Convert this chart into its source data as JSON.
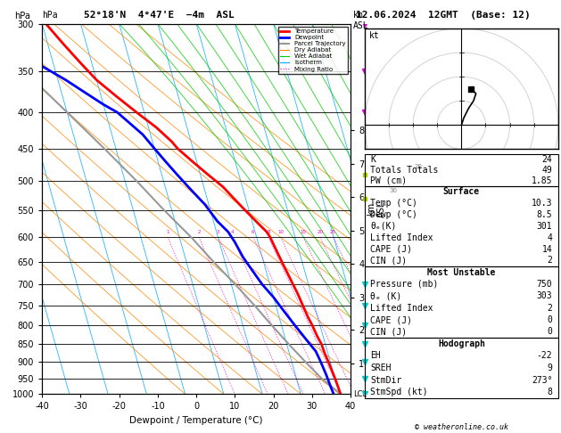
{
  "title_left": "52°18'N  4°47'E  −4m  ASL",
  "title_right": "12.06.2024  12GMT  (Base: 12)",
  "xlabel": "Dewpoint / Temperature (°C)",
  "ylabel_left": "hPa",
  "pressure_ticks": [
    300,
    350,
    400,
    450,
    500,
    550,
    600,
    650,
    700,
    750,
    800,
    850,
    900,
    950,
    1000
  ],
  "temp_range": [
    -40,
    40
  ],
  "isotherm_color": "#00aaff",
  "dry_adiabat_color": "#ff8800",
  "wet_adiabat_color": "#00cc00",
  "mixing_ratio_color": "#ff00bb",
  "temp_color": "#ff0000",
  "dewpoint_color": "#0000ff",
  "parcel_color": "#999999",
  "km_ticks": [
    1,
    2,
    3,
    4,
    5,
    6,
    7,
    8
  ],
  "km_pressures": [
    905,
    812,
    730,
    655,
    588,
    527,
    473,
    424
  ],
  "mixing_ratio_values": [
    1,
    2,
    3,
    4,
    6,
    8,
    10,
    15,
    20,
    25
  ],
  "temperature_profile": {
    "pressure": [
      300,
      320,
      340,
      360,
      380,
      400,
      420,
      440,
      450,
      470,
      490,
      510,
      530,
      550,
      570,
      590,
      600,
      620,
      640,
      660,
      680,
      700,
      720,
      750,
      780,
      800,
      830,
      850,
      880,
      900,
      930,
      950,
      980,
      1000
    ],
    "temp": [
      -39,
      -36,
      -33,
      -30,
      -26,
      -22,
      -18,
      -15,
      -14,
      -11,
      -8,
      -5,
      -3,
      -1,
      1,
      3,
      3.5,
      4,
      4.5,
      5,
      5.5,
      6,
      6.5,
      7,
      7.5,
      8,
      8.5,
      9,
      9.2,
      9.5,
      9.8,
      10,
      10.2,
      10.3
    ]
  },
  "dewpoint_profile": {
    "pressure": [
      300,
      330,
      360,
      390,
      400,
      430,
      450,
      470,
      490,
      510,
      540,
      570,
      590,
      610,
      640,
      660,
      700,
      730,
      760,
      800,
      840,
      870,
      900,
      940,
      980,
      1000
    ],
    "temp": [
      -60,
      -48,
      -38,
      -30,
      -27,
      -22,
      -20,
      -18,
      -16,
      -14,
      -11,
      -9,
      -7,
      -6,
      -5,
      -4,
      -2,
      0,
      1.5,
      3.5,
      5.5,
      7,
      7.5,
      8,
      8.3,
      8.5
    ]
  },
  "parcel_profile": {
    "pressure": [
      1000,
      950,
      900,
      850,
      800,
      750,
      700,
      650,
      600,
      550,
      500,
      450,
      400,
      350,
      300
    ],
    "temp": [
      10.3,
      6.5,
      3.5,
      0.5,
      -2.5,
      -5.5,
      -9,
      -13,
      -17,
      -22,
      -27,
      -33,
      -40,
      -48,
      -57
    ]
  },
  "background_color": "#ffffff",
  "k_index": 24,
  "totals_totals": 49,
  "pw_cm": 1.85,
  "surface_temp": 10.3,
  "surface_dewp": 8.5,
  "theta_e_surface": 301,
  "lifted_index_surface": 4,
  "cape_surface": 14,
  "cin_surface": 2,
  "mu_pressure": 750,
  "theta_e_mu": 303,
  "lifted_index_mu": 2,
  "cape_mu": 0,
  "cin_mu": 0,
  "eh": -22,
  "sreh": 9,
  "stm_dir": 273,
  "stm_spd": 8,
  "hodograph_u": [
    0,
    1,
    3,
    5,
    6,
    4
  ],
  "hodograph_v": [
    0,
    3,
    7,
    10,
    13,
    15
  ],
  "skew": 22.5
}
